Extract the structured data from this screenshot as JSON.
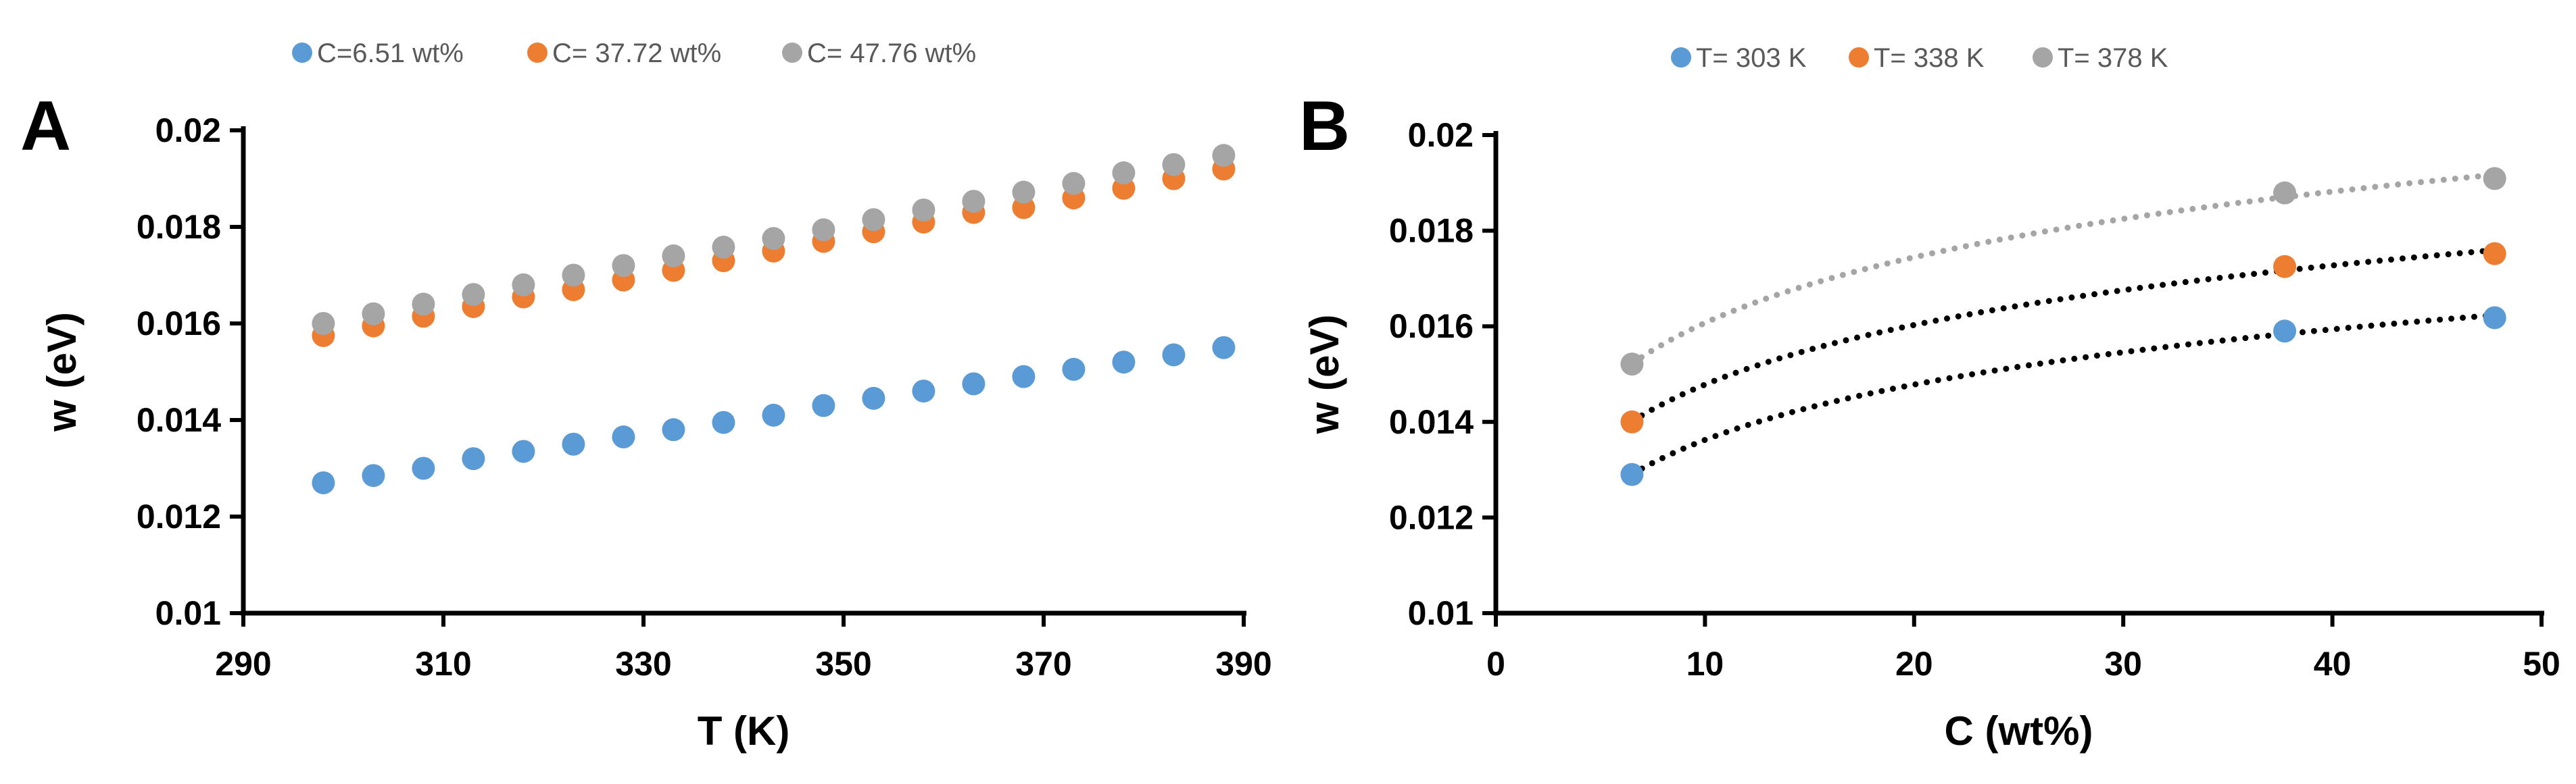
{
  "chart_data": [
    {
      "type": "scatter",
      "panel_label": "A",
      "xlabel": "T (K)",
      "ylabel": "w (eV)",
      "xlim": [
        290,
        390
      ],
      "ylim": [
        0.01,
        0.02
      ],
      "xticks": [
        "290",
        "310",
        "330",
        "350",
        "370",
        "390"
      ],
      "yticks": [
        "0.01",
        "0.012",
        "0.014",
        "0.016",
        "0.018",
        "0.02"
      ],
      "legend_position": "top",
      "series": [
        {
          "name": "C=6.51 wt%",
          "color": "#5B9BD5",
          "x": [
            298,
            303,
            308,
            313,
            318,
            323,
            328,
            333,
            338,
            343,
            348,
            353,
            358,
            363,
            368,
            373,
            378,
            383,
            388
          ],
          "y": [
            0.0127,
            0.01285,
            0.013,
            0.0132,
            0.01335,
            0.0135,
            0.01365,
            0.0138,
            0.01395,
            0.0141,
            0.0143,
            0.01445,
            0.0146,
            0.01475,
            0.0149,
            0.01505,
            0.0152,
            0.01535,
            0.0155
          ]
        },
        {
          "name": "C= 37.72 wt%",
          "color": "#ED7D31",
          "x": [
            298,
            303,
            308,
            313,
            318,
            323,
            328,
            333,
            338,
            343,
            348,
            353,
            358,
            363,
            368,
            373,
            378,
            383,
            388
          ],
          "y": [
            0.01575,
            0.01595,
            0.01615,
            0.01635,
            0.01655,
            0.0167,
            0.0169,
            0.0171,
            0.0173,
            0.0175,
            0.0177,
            0.0179,
            0.0181,
            0.0183,
            0.0184,
            0.0186,
            0.0188,
            0.019,
            0.0192
          ]
        },
        {
          "name": "C= 47.76 wt%",
          "color": "#A5A5A5",
          "x": [
            298,
            303,
            308,
            313,
            318,
            323,
            328,
            333,
            338,
            343,
            348,
            353,
            358,
            363,
            368,
            373,
            378,
            383,
            388
          ],
          "y": [
            0.016,
            0.0162,
            0.0164,
            0.0166,
            0.0168,
            0.017,
            0.0172,
            0.0174,
            0.01758,
            0.01776,
            0.01794,
            0.01815,
            0.01835,
            0.01853,
            0.01872,
            0.0189,
            0.01912,
            0.01929,
            0.01948
          ]
        }
      ]
    },
    {
      "type": "scatter",
      "panel_label": "B",
      "xlabel": "C (wt%)",
      "ylabel": "w (eV)",
      "xlim": [
        0,
        50
      ],
      "ylim": [
        0.01,
        0.02
      ],
      "xticks": [
        "0",
        "10",
        "20",
        "30",
        "40",
        "50"
      ],
      "yticks": [
        "0.01",
        "0.012",
        "0.014",
        "0.016",
        "0.018",
        "0.02"
      ],
      "legend_position": "top",
      "trendline": "logarithmic, dotted",
      "series": [
        {
          "name": "T= 303 K",
          "color": "#5B9BD5",
          "trend_color": "#000000",
          "x": [
            6.51,
            37.72,
            47.76
          ],
          "y": [
            0.0129,
            0.0159,
            0.01618
          ]
        },
        {
          "name": "T= 338 K",
          "color": "#ED7D31",
          "trend_color": "#000000",
          "x": [
            6.51,
            37.72,
            47.76
          ],
          "y": [
            0.014,
            0.01725,
            0.01752
          ]
        },
        {
          "name": "T= 378 K",
          "color": "#A5A5A5",
          "trend_color": "#A5A5A5",
          "x": [
            6.51,
            37.72,
            47.76
          ],
          "y": [
            0.01521,
            0.01879,
            0.01909
          ]
        }
      ]
    }
  ]
}
